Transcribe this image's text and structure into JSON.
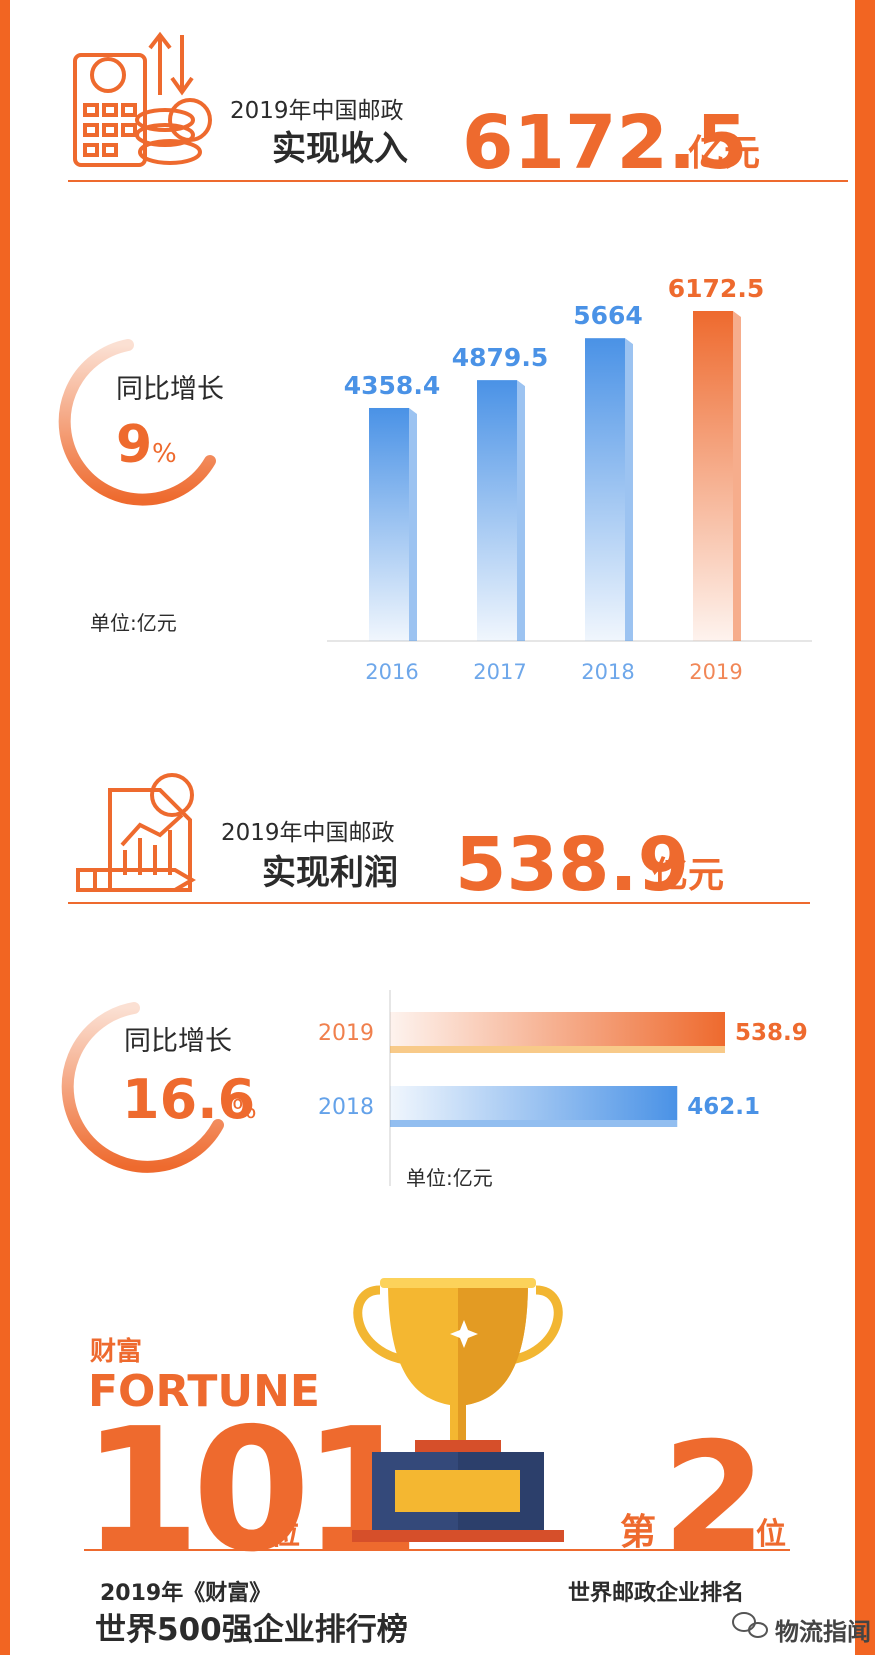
{
  "revenue": {
    "subtitle": "2019年中国邮政",
    "label": "实现收入",
    "value": "6172.5",
    "unit": "亿元",
    "growth_label": "同比增长",
    "growth": "9",
    "growth_unit": "%"
  },
  "profit": {
    "subtitle": "2019年中国邮政",
    "label": "实现利润",
    "value": "538.9",
    "unit": "亿元",
    "growth_label": "同比增长",
    "growth": "16.6",
    "growth_unit": "%"
  },
  "chart_data": [
    {
      "type": "bar",
      "note": "单位:亿元",
      "categories": [
        "2016",
        "2017",
        "2018",
        "2019"
      ],
      "values": [
        4358.4,
        4879.5,
        5664,
        6172.5
      ],
      "colors": [
        "#4a92e6",
        "#4a92e6",
        "#4a92e6",
        "#ee6a2e"
      ]
    },
    {
      "type": "hbar",
      "note": "单位:亿元",
      "categories": [
        "2019",
        "2018"
      ],
      "values": [
        538.9,
        462.1
      ],
      "colors": [
        "#ee6a2e",
        "#4a92e6"
      ]
    }
  ],
  "fortune": {
    "brand_cn": "财富",
    "brand_en": "FORTUNE",
    "rank": "101",
    "rank_unit": "位",
    "caption_line1": "2019年《财富》",
    "caption_line2": "世界500强企业排行榜",
    "world_prefix": "第",
    "world_rank": "2",
    "world_unit": "位",
    "world_caption": "世界邮政企业排名"
  },
  "watermark": "物流指闻"
}
